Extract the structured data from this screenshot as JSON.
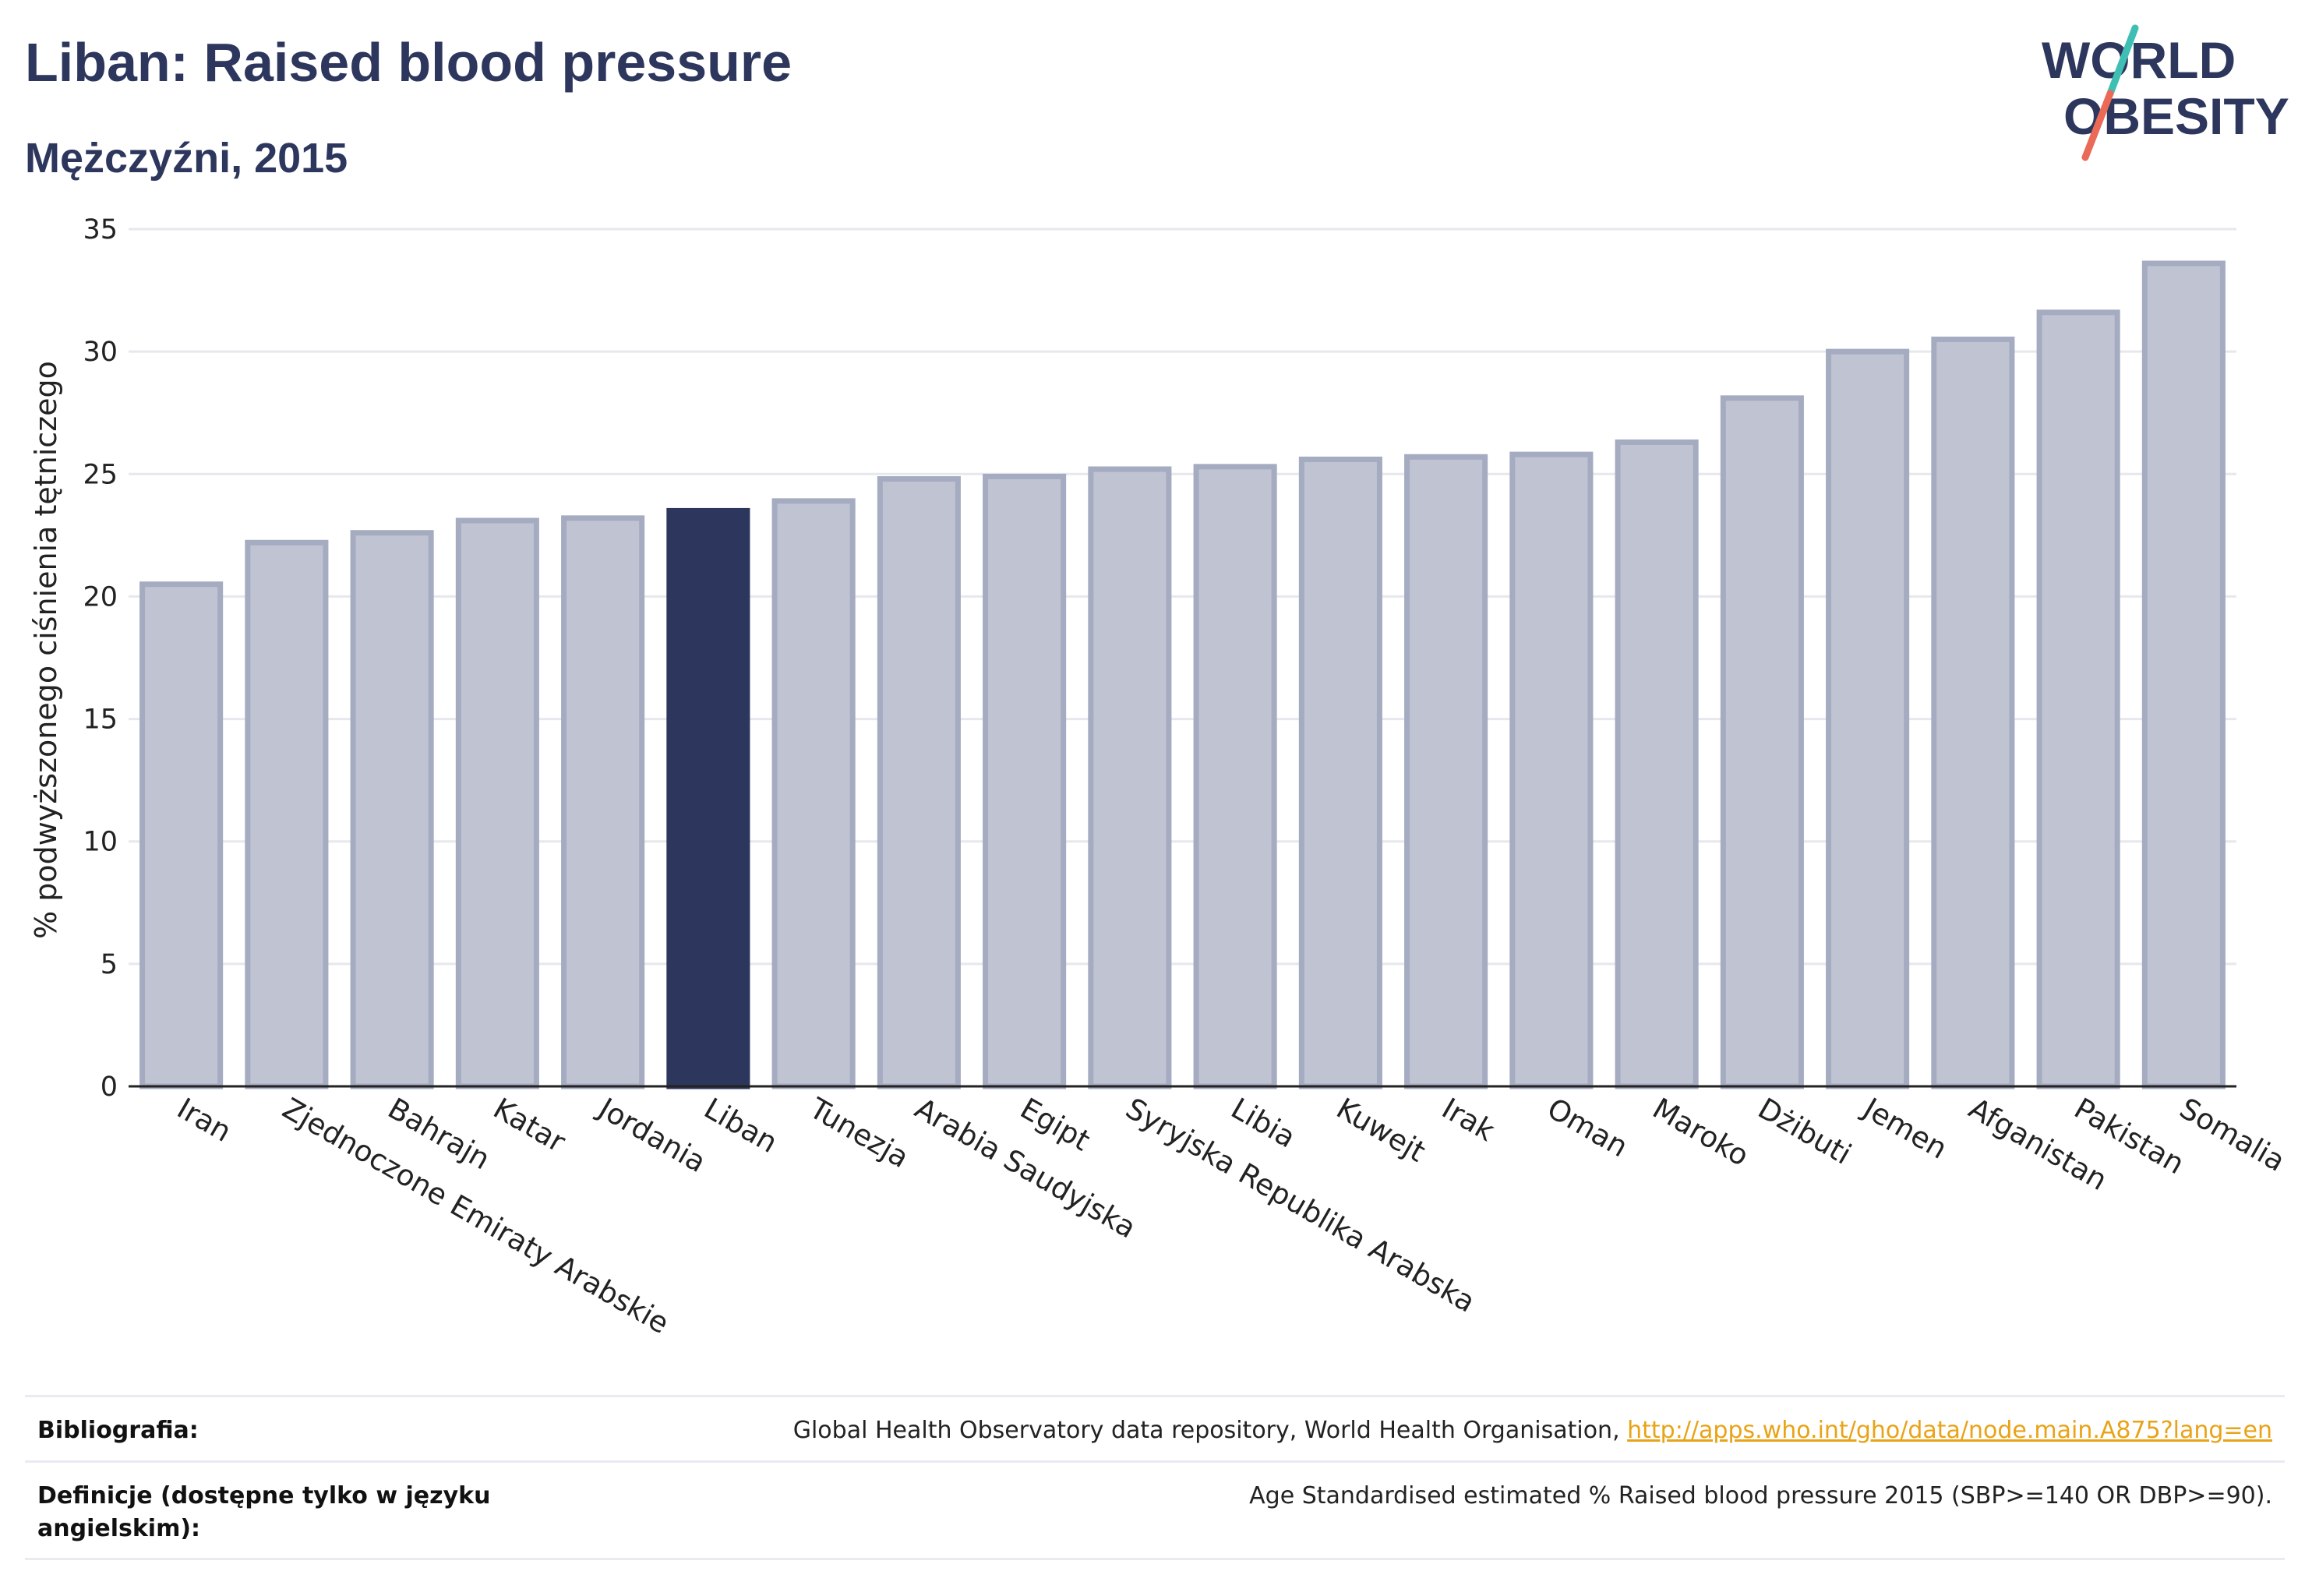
{
  "header": {
    "title": "Liban: Raised blood pressure",
    "subtitle": "Mężczyźni, 2015"
  },
  "logo": {
    "line1": "WORLD",
    "line2": "OBESITY",
    "colors": {
      "text": "#2d365c",
      "slash_top": "#3fbfb3",
      "slash_bottom": "#ea6a57"
    }
  },
  "colors": {
    "bar": "#c0c4d2",
    "bar_stroke": "#a5abc0",
    "highlight": "#2d365c",
    "grid": "#e6e8ee",
    "link": "#e8a317"
  },
  "chart_data": {
    "type": "bar",
    "ylabel": "% podwyższonego ciśnienia tętniczego",
    "ylim": [
      0,
      35
    ],
    "yticks": [
      0,
      5,
      10,
      15,
      20,
      25,
      30,
      35
    ],
    "grid": true,
    "highlight_category": "Liban",
    "categories": [
      "Iran",
      "Zjednoczone Emiraty Arabskie",
      "Bahrajn",
      "Katar",
      "Jordania",
      "Liban",
      "Tunezja",
      "Arabia Saudyjska",
      "Egipt",
      "Syryjska Republika Arabska",
      "Libia",
      "Kuwejt",
      "Irak",
      "Oman",
      "Maroko",
      "Dżibuti",
      "Jemen",
      "Afganistan",
      "Pakistan",
      "Somalia"
    ],
    "values": [
      20.5,
      22.2,
      22.6,
      23.1,
      23.2,
      23.5,
      23.9,
      24.8,
      24.9,
      25.2,
      25.3,
      25.6,
      25.7,
      25.8,
      26.3,
      28.1,
      30.0,
      30.5,
      31.6,
      33.6
    ]
  },
  "footer": {
    "bibliography_label": "Bibliografia:",
    "bibliography_text": "Global Health Observatory data repository, World Health Organisation, ",
    "bibliography_link": "http://apps.who.int/gho/data/node.main.A875?lang=en",
    "definition_label": "Definicje (dostępne tylko w języku angielskim):",
    "definition_text": "Age Standardised estimated % Raised blood pressure 2015 (SBP>=140 OR DBP>=90)."
  }
}
